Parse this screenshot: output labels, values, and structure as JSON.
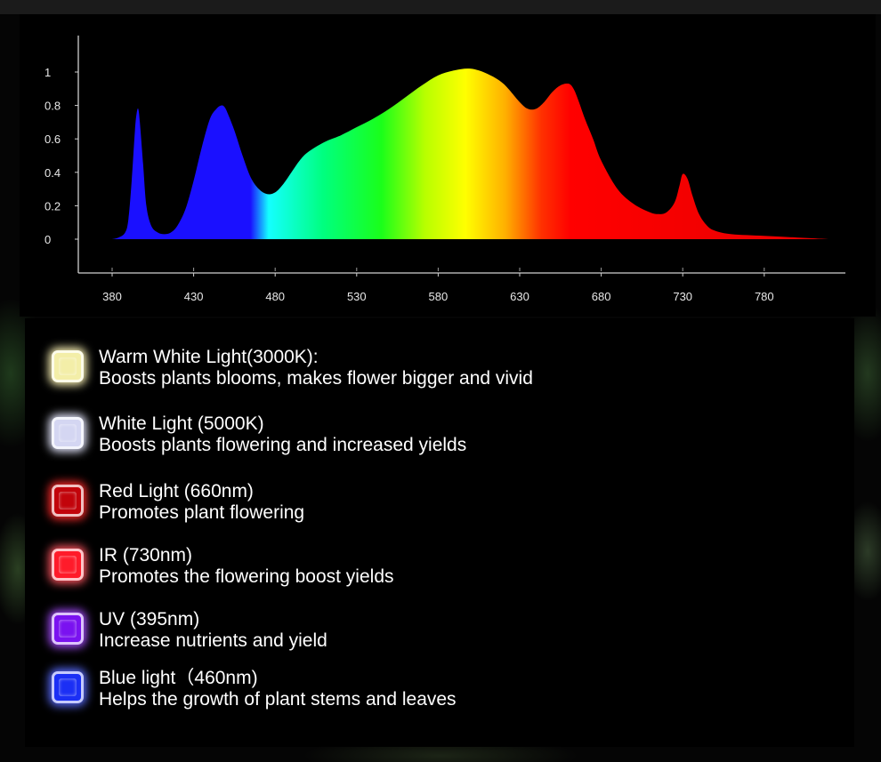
{
  "chart_data": {
    "type": "area",
    "title": "",
    "xlabel": "",
    "ylabel": "",
    "xlim": [
      370,
      830
    ],
    "ylim": [
      -0.05,
      1.1
    ],
    "x_ticks": [
      380,
      430,
      480,
      530,
      580,
      630,
      680,
      730,
      780
    ],
    "y_ticks": [
      0,
      0.2,
      0.4,
      0.6,
      0.8,
      1
    ],
    "y_tick_labels": [
      "0",
      "0.2",
      "0.4",
      "0.6",
      "0.8",
      "1"
    ],
    "grid": false,
    "legend": "none",
    "fill": "rainbow-gradient-by-wavelength",
    "series": [
      {
        "x": [
          380,
          384,
          388,
          390,
          392,
          394,
          395,
          396,
          397,
          399,
          401,
          404,
          408,
          412,
          416,
          420,
          425,
          430,
          435,
          440,
          444,
          447,
          449,
          451,
          455,
          460,
          465,
          470,
          475,
          480,
          485,
          490,
          495,
          500,
          510,
          520,
          530,
          540,
          550,
          560,
          570,
          580,
          590,
          600,
          610,
          620,
          630,
          635,
          640,
          645,
          650,
          655,
          660,
          663,
          666,
          670,
          675,
          680,
          690,
          700,
          710,
          715,
          720,
          725,
          728,
          730,
          733,
          736,
          740,
          745,
          750,
          760,
          780,
          800,
          820
        ],
        "y": [
          0.0,
          0.01,
          0.04,
          0.12,
          0.35,
          0.65,
          0.75,
          0.78,
          0.7,
          0.45,
          0.2,
          0.08,
          0.04,
          0.03,
          0.04,
          0.08,
          0.18,
          0.35,
          0.55,
          0.72,
          0.78,
          0.8,
          0.79,
          0.75,
          0.65,
          0.5,
          0.37,
          0.3,
          0.27,
          0.28,
          0.33,
          0.4,
          0.47,
          0.52,
          0.58,
          0.62,
          0.67,
          0.72,
          0.78,
          0.85,
          0.92,
          0.98,
          1.01,
          1.02,
          0.99,
          0.93,
          0.82,
          0.78,
          0.78,
          0.82,
          0.88,
          0.92,
          0.93,
          0.9,
          0.83,
          0.72,
          0.6,
          0.47,
          0.3,
          0.21,
          0.16,
          0.15,
          0.16,
          0.22,
          0.32,
          0.39,
          0.36,
          0.26,
          0.15,
          0.08,
          0.05,
          0.03,
          0.02,
          0.01,
          0.0
        ]
      }
    ]
  },
  "legend": {
    "items": [
      {
        "title": "Warm White Light(3000K):",
        "desc": "Boosts plants blooms, makes flower bigger and vivid",
        "color": "#f3eea8",
        "glow": "#fff6b8"
      },
      {
        "title": "White Light (5000K)",
        "desc": "Boosts plants flowering and increased yields",
        "color": "#d4d6f2",
        "glow": "#e6e8ff"
      },
      {
        "title": "Red Light (660nm)",
        "desc": "Promotes plant flowering",
        "color": "#c2040b",
        "glow": "#ff2a2a"
      },
      {
        "title": "IR (730nm)",
        "desc": "Promotes the flowering boost yields",
        "color": "#ff1b2a",
        "glow": "#ff5560"
      },
      {
        "title": "UV (395nm)",
        "desc": "Increase nutrients and yield",
        "color": "#7a12f0",
        "glow": "#a64dff"
      },
      {
        "title": "Blue light（460nm)",
        "desc": "Helps the growth of plant stems and leaves",
        "color": "#1b2ff5",
        "glow": "#5a6cff"
      }
    ]
  }
}
